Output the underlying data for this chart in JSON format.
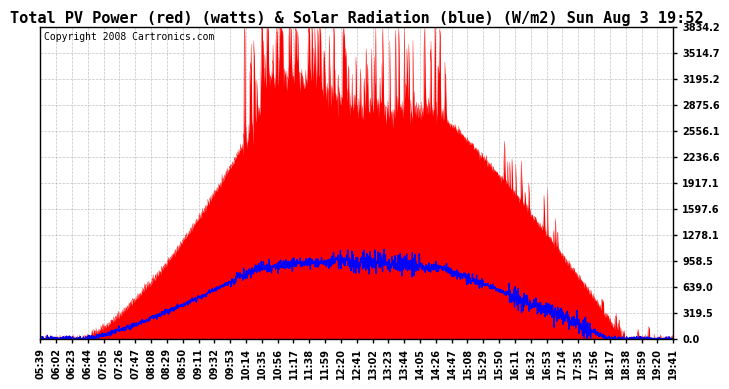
{
  "title": "Total PV Power (red) (watts) & Solar Radiation (blue) (W/m2) Sun Aug 3 19:52",
  "copyright": "Copyright 2008 Cartronics.com",
  "bg_color": "#ffffff",
  "plot_bg_color": "#ffffff",
  "grid_color": "#aaaaaa",
  "yticks": [
    0.0,
    319.5,
    639.0,
    958.5,
    1278.1,
    1597.6,
    1917.1,
    2236.6,
    2556.1,
    2875.6,
    3195.2,
    3514.7,
    3834.2
  ],
  "ymax": 3834.2,
  "ymin": 0.0,
  "red_color": "#ff0000",
  "blue_color": "#0000ff",
  "title_fontsize": 11,
  "copyright_fontsize": 7,
  "tick_fontsize": 7,
  "xtick_labels": [
    "05:39",
    "06:02",
    "06:23",
    "06:44",
    "07:05",
    "07:26",
    "07:47",
    "08:08",
    "08:29",
    "08:50",
    "09:11",
    "09:32",
    "09:53",
    "10:14",
    "10:35",
    "10:56",
    "11:17",
    "11:38",
    "11:59",
    "12:20",
    "12:41",
    "13:02",
    "13:23",
    "13:44",
    "14:05",
    "14:26",
    "14:47",
    "15:08",
    "15:29",
    "15:50",
    "16:11",
    "16:32",
    "16:53",
    "17:14",
    "17:35",
    "17:56",
    "18:17",
    "18:38",
    "18:59",
    "19:20",
    "19:41"
  ],
  "n_xticks": 41,
  "pv_peak": 3200,
  "sol_peak": 950,
  "peak_time": 0.38,
  "sol_peak_time": 0.42
}
